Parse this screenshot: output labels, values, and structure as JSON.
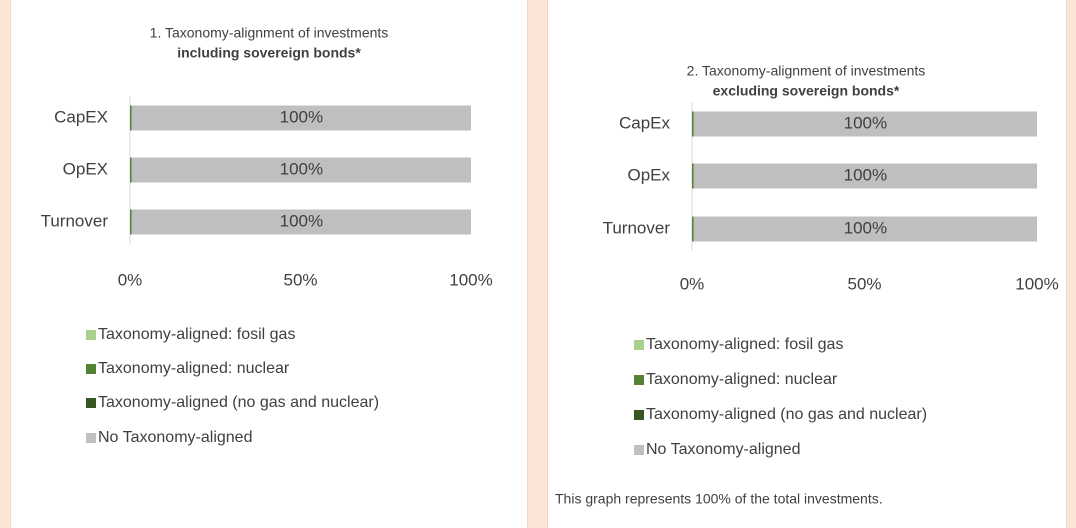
{
  "chart_data": [
    {
      "type": "stacked-bar-horizontal",
      "title": "1. Taxonomy-alignment of investments",
      "subtitle": "including sovereign bonds*",
      "categories": [
        "CapEX",
        "OpEX",
        "Turnover"
      ],
      "series": [
        {
          "name": "Taxonomy-aligned: fosil gas",
          "color": "#a9d18e",
          "values": [
            0,
            0,
            0
          ]
        },
        {
          "name": "Taxonomy-aligned: nuclear",
          "color": "#548235",
          "values": [
            0.5,
            0.5,
            0.5
          ]
        },
        {
          "name": "Taxonomy-aligned (no gas and nuclear)",
          "color": "#375623",
          "values": [
            0,
            0,
            0
          ]
        },
        {
          "name": "No Taxonomy-aligned",
          "color": "#bfbfbf",
          "values": [
            99.5,
            99.5,
            99.5
          ],
          "value_labels": [
            "100%",
            "100%",
            "100%"
          ]
        }
      ],
      "xlim": [
        0,
        100
      ],
      "xticks": [
        {
          "value": 0,
          "label": "0%"
        },
        {
          "value": 50,
          "label": "50%"
        },
        {
          "value": 100,
          "label": "100%"
        }
      ]
    },
    {
      "type": "stacked-bar-horizontal",
      "title": "2. Taxonomy-alignment of investments",
      "subtitle": "excluding sovereign bonds*",
      "categories": [
        "CapEx",
        "OpEx",
        "Turnover"
      ],
      "series": [
        {
          "name": "Taxonomy-aligned: fosil gas",
          "color": "#a9d18e",
          "values": [
            0,
            0,
            0
          ]
        },
        {
          "name": "Taxonomy-aligned: nuclear",
          "color": "#548235",
          "values": [
            0.5,
            0.5,
            0.5
          ]
        },
        {
          "name": "Taxonomy-aligned (no gas and nuclear)",
          "color": "#375623",
          "values": [
            0,
            0,
            0
          ]
        },
        {
          "name": "No Taxonomy-aligned",
          "color": "#bfbfbf",
          "values": [
            99.5,
            99.5,
            99.5
          ],
          "value_labels": [
            "100%",
            "100%",
            "100%"
          ]
        }
      ],
      "xlim": [
        0,
        100
      ],
      "xticks": [
        {
          "value": 0,
          "label": "0%"
        },
        {
          "value": 50,
          "label": "50%"
        },
        {
          "value": 100,
          "label": "100%"
        }
      ],
      "note": "This graph represents 100% of the total investments."
    }
  ]
}
